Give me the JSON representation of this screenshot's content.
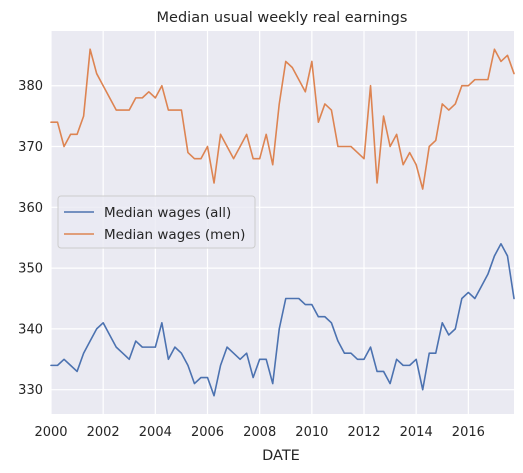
{
  "chart_data": {
    "type": "line",
    "title": "Median usual weekly real earnings",
    "xlabel": "DATE",
    "ylabel": "",
    "xlim": [
      2000.0,
      2017.75
    ],
    "ylim": [
      326,
      389
    ],
    "x_ticks": [
      2000,
      2002,
      2004,
      2006,
      2008,
      2010,
      2012,
      2014,
      2016
    ],
    "y_ticks": [
      330,
      340,
      350,
      360,
      370,
      380
    ],
    "grid": true,
    "legend_position": "center-left",
    "x": [
      2000.0,
      2000.25,
      2000.5,
      2000.75,
      2001.0,
      2001.25,
      2001.5,
      2001.75,
      2002.0,
      2002.25,
      2002.5,
      2002.75,
      2003.0,
      2003.25,
      2003.5,
      2003.75,
      2004.0,
      2004.25,
      2004.5,
      2004.75,
      2005.0,
      2005.25,
      2005.5,
      2005.75,
      2006.0,
      2006.25,
      2006.5,
      2006.75,
      2007.0,
      2007.25,
      2007.5,
      2007.75,
      2008.0,
      2008.25,
      2008.5,
      2008.75,
      2009.0,
      2009.25,
      2009.5,
      2009.75,
      2010.0,
      2010.25,
      2010.5,
      2010.75,
      2011.0,
      2011.25,
      2011.5,
      2011.75,
      2012.0,
      2012.25,
      2012.5,
      2012.75,
      2013.0,
      2013.25,
      2013.5,
      2013.75,
      2014.0,
      2014.25,
      2014.5,
      2014.75,
      2015.0,
      2015.25,
      2015.5,
      2015.75,
      2016.0,
      2016.25,
      2016.5,
      2016.75,
      2017.0,
      2017.25,
      2017.5,
      2017.75
    ],
    "series": [
      {
        "name": "Median wages (all)",
        "color": "#4c72b0",
        "values": [
          334,
          334,
          335,
          334,
          333,
          336,
          338,
          340,
          341,
          339,
          337,
          336,
          335,
          338,
          337,
          337,
          337,
          341,
          335,
          337,
          336,
          334,
          331,
          332,
          332,
          329,
          334,
          337,
          336,
          335,
          336,
          332,
          335,
          335,
          331,
          340,
          345,
          345,
          345,
          344,
          344,
          342,
          342,
          341,
          338,
          336,
          336,
          335,
          335,
          337,
          333,
          333,
          331,
          335,
          334,
          334,
          335,
          330,
          336,
          336,
          341,
          339,
          340,
          345,
          346,
          345,
          347,
          349,
          352,
          354,
          352,
          345
        ]
      },
      {
        "name": "Median wages (men)",
        "color": "#dd8452",
        "values": [
          374,
          374,
          370,
          372,
          372,
          375,
          386,
          382,
          380,
          378,
          376,
          376,
          376,
          378,
          378,
          379,
          378,
          380,
          376,
          376,
          376,
          369,
          368,
          368,
          370,
          364,
          372,
          370,
          368,
          370,
          372,
          368,
          368,
          372,
          367,
          377,
          384,
          383,
          381,
          379,
          384,
          374,
          377,
          376,
          370,
          370,
          370,
          369,
          368,
          380,
          364,
          375,
          370,
          372,
          367,
          369,
          367,
          363,
          370,
          371,
          377,
          376,
          377,
          380,
          380,
          381,
          381,
          381,
          386,
          384,
          385,
          382
        ]
      }
    ]
  }
}
